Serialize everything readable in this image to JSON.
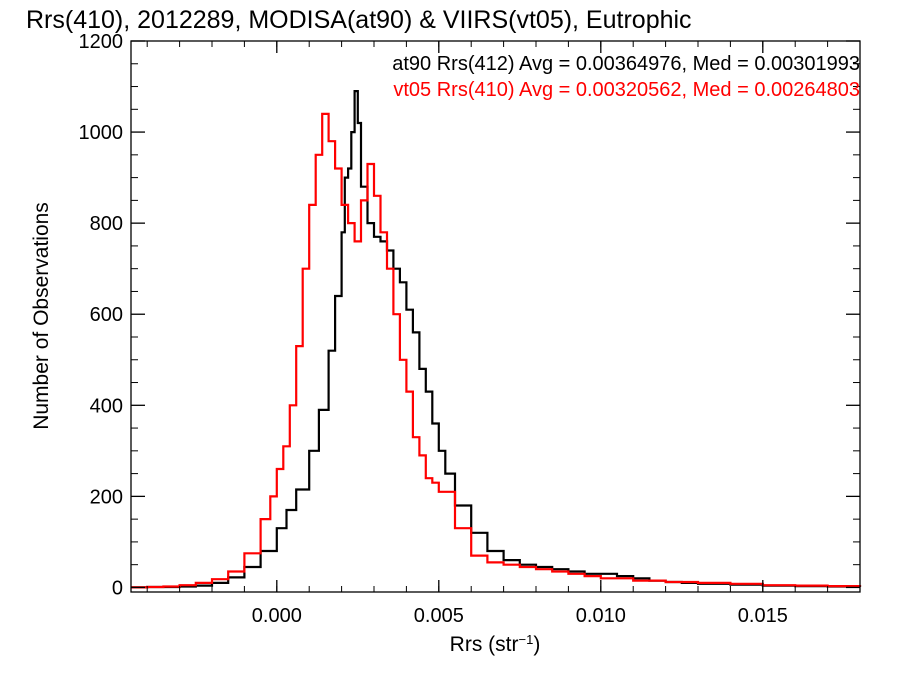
{
  "chart_data": {
    "type": "line",
    "title": "Rrs(410), 2012289, MODISA(at90) & VIIRS(vt05), Eutrophic",
    "xlabel_base": "Rrs (str",
    "xlabel_sup": "−1",
    "xlabel_close": ")",
    "ylabel": "Number of Observations",
    "xlim": [
      -0.0045,
      0.018
    ],
    "ylim": [
      -10,
      1200
    ],
    "xticks": [
      0.0,
      0.005,
      0.01,
      0.015
    ],
    "xtick_labels": [
      "0.000",
      "0.005",
      "0.010",
      "0.015"
    ],
    "yticks": [
      0,
      200,
      400,
      600,
      800,
      1000,
      1200
    ],
    "ytick_labels": [
      "0",
      "200",
      "400",
      "600",
      "800",
      "1000",
      "1200"
    ],
    "annotations": [
      {
        "text": "at90 Rrs(412) Avg = 0.00364976, Med = 0.00301993",
        "color": "#000000"
      },
      {
        "text": "vt05 Rrs(410) Avg = 0.00320562, Med = 0.00264803",
        "color": "#ff0000"
      }
    ],
    "series": [
      {
        "color": "#000000",
        "points": [
          [
            -0.0045,
            0
          ],
          [
            -0.004,
            1
          ],
          [
            -0.0035,
            1
          ],
          [
            -0.003,
            2
          ],
          [
            -0.0025,
            4
          ],
          [
            -0.002,
            10
          ],
          [
            -0.0015,
            22
          ],
          [
            -0.001,
            45
          ],
          [
            -0.0005,
            80
          ],
          [
            0.0,
            130
          ],
          [
            0.0003,
            170
          ],
          [
            0.0006,
            215
          ],
          [
            0.001,
            300
          ],
          [
            0.0013,
            390
          ],
          [
            0.0016,
            520
          ],
          [
            0.0018,
            640
          ],
          [
            0.002,
            780
          ],
          [
            0.0021,
            900
          ],
          [
            0.0022,
            920
          ],
          [
            0.0023,
            1000
          ],
          [
            0.0024,
            1090
          ],
          [
            0.0025,
            1020
          ],
          [
            0.0026,
            880
          ],
          [
            0.0028,
            800
          ],
          [
            0.003,
            770
          ],
          [
            0.0032,
            760
          ],
          [
            0.0034,
            740
          ],
          [
            0.0036,
            700
          ],
          [
            0.0038,
            670
          ],
          [
            0.004,
            610
          ],
          [
            0.0042,
            560
          ],
          [
            0.0044,
            480
          ],
          [
            0.0046,
            430
          ],
          [
            0.0048,
            360
          ],
          [
            0.005,
            300
          ],
          [
            0.0052,
            250
          ],
          [
            0.0055,
            180
          ],
          [
            0.006,
            120
          ],
          [
            0.0065,
            80
          ],
          [
            0.007,
            60
          ],
          [
            0.0075,
            50
          ],
          [
            0.008,
            45
          ],
          [
            0.0085,
            40
          ],
          [
            0.009,
            35
          ],
          [
            0.0095,
            30
          ],
          [
            0.01,
            30
          ],
          [
            0.0105,
            25
          ],
          [
            0.011,
            20
          ],
          [
            0.0115,
            15
          ],
          [
            0.012,
            12
          ],
          [
            0.0125,
            10
          ],
          [
            0.013,
            8
          ],
          [
            0.014,
            6
          ],
          [
            0.015,
            4
          ],
          [
            0.016,
            3
          ],
          [
            0.017,
            2
          ],
          [
            0.018,
            1
          ]
        ]
      },
      {
        "color": "#ff0000",
        "points": [
          [
            -0.0045,
            0
          ],
          [
            -0.004,
            1
          ],
          [
            -0.0035,
            2
          ],
          [
            -0.003,
            5
          ],
          [
            -0.0025,
            10
          ],
          [
            -0.002,
            18
          ],
          [
            -0.0015,
            35
          ],
          [
            -0.001,
            75
          ],
          [
            -0.0005,
            150
          ],
          [
            -0.0002,
            200
          ],
          [
            0.0,
            260
          ],
          [
            0.0002,
            310
          ],
          [
            0.0004,
            400
          ],
          [
            0.0006,
            530
          ],
          [
            0.0008,
            700
          ],
          [
            0.001,
            840
          ],
          [
            0.0012,
            950
          ],
          [
            0.0014,
            1040
          ],
          [
            0.0016,
            980
          ],
          [
            0.0018,
            920
          ],
          [
            0.002,
            840
          ],
          [
            0.0022,
            800
          ],
          [
            0.0024,
            760
          ],
          [
            0.0026,
            850
          ],
          [
            0.0028,
            930
          ],
          [
            0.003,
            860
          ],
          [
            0.0032,
            780
          ],
          [
            0.0034,
            700
          ],
          [
            0.0036,
            600
          ],
          [
            0.0038,
            500
          ],
          [
            0.004,
            430
          ],
          [
            0.0042,
            330
          ],
          [
            0.0044,
            290
          ],
          [
            0.0046,
            240
          ],
          [
            0.0048,
            230
          ],
          [
            0.005,
            210
          ],
          [
            0.0055,
            130
          ],
          [
            0.006,
            70
          ],
          [
            0.0065,
            55
          ],
          [
            0.007,
            50
          ],
          [
            0.0075,
            45
          ],
          [
            0.008,
            40
          ],
          [
            0.0085,
            35
          ],
          [
            0.009,
            30
          ],
          [
            0.0095,
            25
          ],
          [
            0.01,
            20
          ],
          [
            0.0105,
            20
          ],
          [
            0.011,
            15
          ],
          [
            0.012,
            12
          ],
          [
            0.013,
            10
          ],
          [
            0.014,
            8
          ],
          [
            0.015,
            5
          ],
          [
            0.016,
            4
          ],
          [
            0.017,
            3
          ],
          [
            0.018,
            2
          ]
        ]
      }
    ]
  }
}
